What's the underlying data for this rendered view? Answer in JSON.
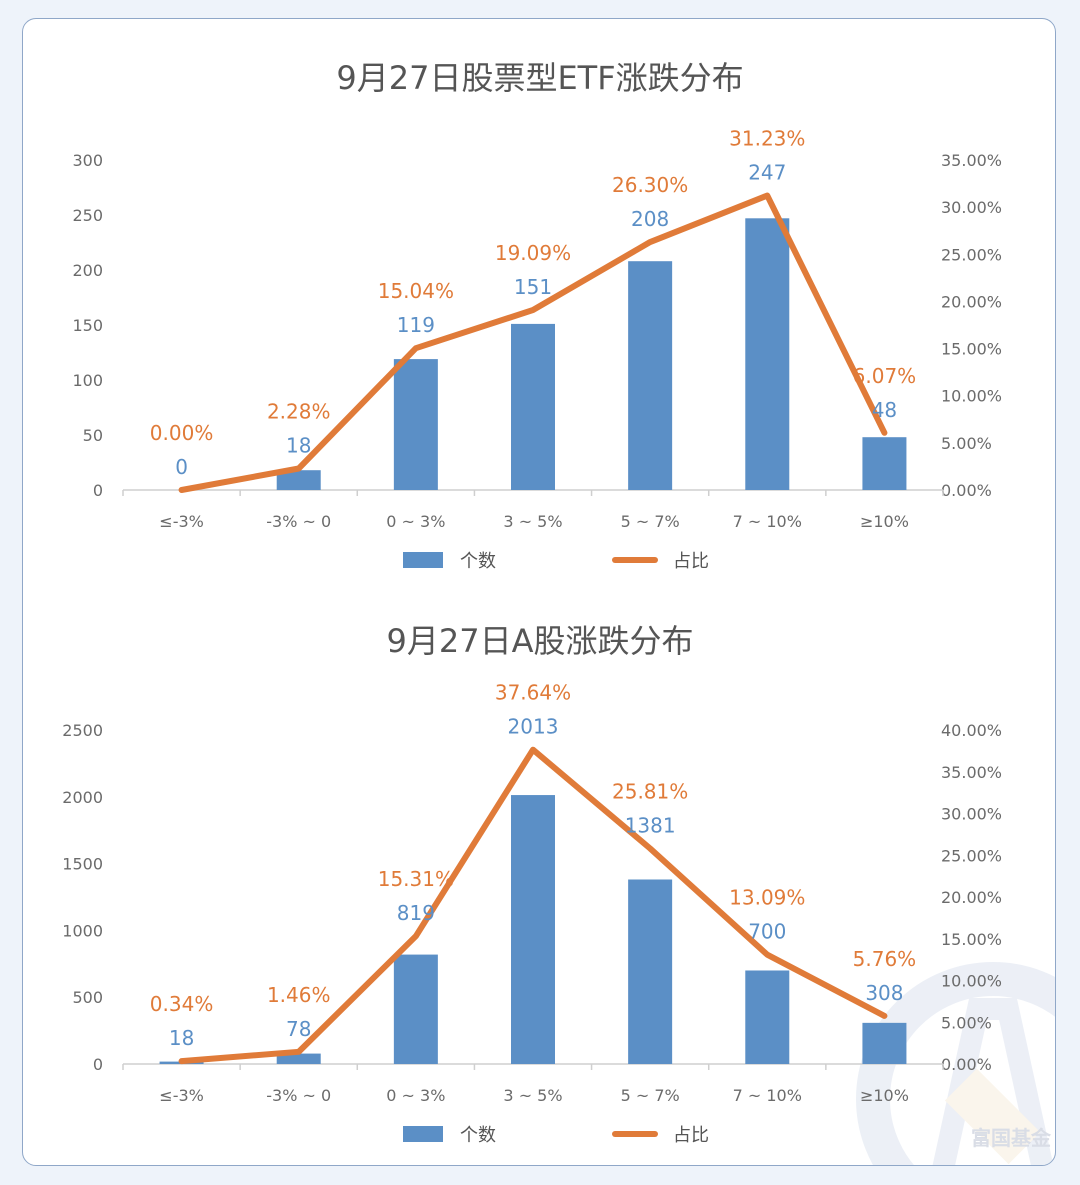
{
  "colors": {
    "bar": "#5b8fc6",
    "line": "#e07b39",
    "axis": "#cfcfcf",
    "text": "#6b6b6b"
  },
  "legend": {
    "bar_label": "个数",
    "line_label": "占比"
  },
  "watermark": {
    "brand": "富国基金",
    "icon": "fund-logo-icon"
  },
  "chart_data": [
    {
      "type": "bar",
      "title": "9月27日股票型ETF涨跌分布",
      "categories": [
        "≤-3%",
        "-3% ~ 0",
        "0 ~ 3%",
        "3 ~ 5%",
        "5 ~ 7%",
        "7 ~ 10%",
        "≥10%"
      ],
      "series": [
        {
          "name": "个数",
          "type": "bar",
          "axis": "left",
          "values": [
            0,
            18,
            119,
            151,
            208,
            247,
            48
          ]
        },
        {
          "name": "占比",
          "type": "line",
          "axis": "right",
          "values": [
            0.0,
            2.28,
            15.04,
            19.09,
            26.3,
            31.23,
            6.07
          ]
        }
      ],
      "bar_labels": [
        "0",
        "18",
        "119",
        "151",
        "208",
        "247",
        "48"
      ],
      "line_labels": [
        "0.00%",
        "2.28%",
        "15.04%",
        "19.09%",
        "26.30%",
        "31.23%",
        "6.07%"
      ],
      "y_left": {
        "min": 0,
        "max": 300,
        "ticks": [
          "0",
          "50",
          "100",
          "150",
          "200",
          "250",
          "300"
        ]
      },
      "y_right": {
        "min": 0,
        "max": 35,
        "ticks": [
          "0.00%",
          "5.00%",
          "10.00%",
          "15.00%",
          "20.00%",
          "25.00%",
          "30.00%",
          "35.00%"
        ]
      },
      "legend_position": "bottom",
      "grid": false
    },
    {
      "type": "bar",
      "title": "9月27日A股涨跌分布",
      "categories": [
        "≤-3%",
        "-3% ~ 0",
        "0 ~ 3%",
        "3 ~ 5%",
        "5 ~ 7%",
        "7 ~ 10%",
        "≥10%"
      ],
      "series": [
        {
          "name": "个数",
          "type": "bar",
          "axis": "left",
          "values": [
            18,
            78,
            819,
            2013,
            1381,
            700,
            308
          ]
        },
        {
          "name": "占比",
          "type": "line",
          "axis": "right",
          "values": [
            0.34,
            1.46,
            15.31,
            37.64,
            25.81,
            13.09,
            5.76
          ]
        }
      ],
      "bar_labels": [
        "18",
        "78",
        "819",
        "2013",
        "1381",
        "700",
        "308"
      ],
      "line_labels": [
        "0.34%",
        "1.46%",
        "15.31%",
        "37.64%",
        "25.81%",
        "13.09%",
        "5.76%"
      ],
      "y_left": {
        "min": 0,
        "max": 2500,
        "ticks": [
          "0",
          "500",
          "1000",
          "1500",
          "2000",
          "2500"
        ]
      },
      "y_right": {
        "min": 0,
        "max": 40,
        "ticks": [
          "0.00%",
          "5.00%",
          "10.00%",
          "15.00%",
          "20.00%",
          "25.00%",
          "30.00%",
          "35.00%",
          "40.00%"
        ]
      },
      "legend_position": "bottom",
      "grid": false
    }
  ]
}
